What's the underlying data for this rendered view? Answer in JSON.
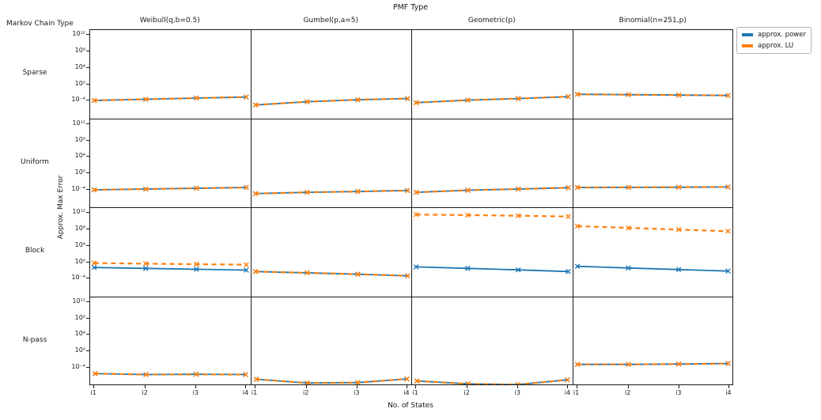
{
  "title": "PMF Type",
  "corner_label": "Markov Chain Type",
  "xlabel": "No. of States",
  "ylabel": "Approx. Max Error",
  "colors": {
    "power": "#1f77b4",
    "lu": "#ff7f0e",
    "axis": "#1a1a1a",
    "background": "#ffffff"
  },
  "legend": {
    "items": [
      {
        "label": "approx. power",
        "color": "#1f77b4",
        "style": "solid"
      },
      {
        "label": "approx. LU",
        "color": "#ff7f0e",
        "style": "dashed"
      }
    ]
  },
  "chart_data": {
    "type": "line",
    "title": "PMF Type",
    "xlabel": "No. of States",
    "ylabel": "Approx. Max Error",
    "col_titles": [
      "Weibull(q,b=0.5)",
      "Gumbel(p,a=5)",
      "Geometric(p)",
      "Binomial(n=251,p)"
    ],
    "row_titles": [
      "Sparse",
      "Uniform",
      "Block",
      "N-pass"
    ],
    "x_categories": [
      "i1",
      "i2",
      "i3",
      "i4"
    ],
    "y_scale": "log",
    "y_tick_exponents": [
      12,
      8,
      4,
      0,
      -4
    ],
    "y_tick_labels": [
      "10¹²",
      "10⁸",
      "10⁴",
      "10⁰",
      "10⁻⁴"
    ],
    "y_range_exponents": [
      -8.46,
      13.2
    ],
    "legend_position": "upper right outside",
    "grid_lines": false,
    "subplots": [
      {
        "row": "Sparse",
        "col": "Weibull(q,b=0.5)",
        "series": [
          {
            "name": "approx. power",
            "values": [
              0.0001,
              0.0002,
              0.0004,
              0.0007
            ]
          },
          {
            "name": "approx. LU",
            "values": [
              0.0001,
              0.0002,
              0.0004,
              0.0007
            ]
          }
        ]
      },
      {
        "row": "Sparse",
        "col": "Gumbel(p,a=5)",
        "series": [
          {
            "name": "approx. power",
            "values": [
              8e-06,
              5e-05,
              0.00015,
              0.0003
            ]
          },
          {
            "name": "approx. LU",
            "values": [
              8e-06,
              5e-05,
              0.00015,
              0.0003
            ]
          }
        ]
      },
      {
        "row": "Sparse",
        "col": "Geometric(p)",
        "series": [
          {
            "name": "approx. power",
            "values": [
              3e-05,
              0.00012,
              0.0003,
              0.0009
            ]
          },
          {
            "name": "approx. LU",
            "values": [
              3e-05,
              0.00012,
              0.0003,
              0.0009
            ]
          }
        ]
      },
      {
        "row": "Sparse",
        "col": "Binomial(n=251,p)",
        "series": [
          {
            "name": "approx. power",
            "values": [
              0.003,
              0.0024,
              0.0019,
              0.0015
            ]
          },
          {
            "name": "approx. LU",
            "values": [
              0.003,
              0.0024,
              0.0019,
              0.0015
            ]
          }
        ]
      },
      {
        "row": "Uniform",
        "col": "Weibull(q,b=0.5)",
        "series": [
          {
            "name": "approx. power",
            "values": [
              0.0001,
              0.00016,
              0.00025,
              0.0004
            ]
          },
          {
            "name": "approx. LU",
            "values": [
              0.0001,
              0.00016,
              0.00025,
              0.0004
            ]
          }
        ]
      },
      {
        "row": "Uniform",
        "col": "Gumbel(p,a=5)",
        "series": [
          {
            "name": "approx. power",
            "values": [
              1.2e-05,
              2.5e-05,
              4e-05,
              7e-05
            ]
          },
          {
            "name": "approx. LU",
            "values": [
              1.2e-05,
              2.5e-05,
              4e-05,
              7e-05
            ]
          }
        ]
      },
      {
        "row": "Uniform",
        "col": "Geometric(p)",
        "series": [
          {
            "name": "approx. power",
            "values": [
              2.5e-05,
              8e-05,
              0.00016,
              0.00035
            ]
          },
          {
            "name": "approx. LU",
            "values": [
              2.5e-05,
              8e-05,
              0.00016,
              0.00035
            ]
          }
        ]
      },
      {
        "row": "Uniform",
        "col": "Binomial(n=251,p)",
        "series": [
          {
            "name": "approx. power",
            "values": [
              0.00035,
              0.00036,
              0.0004,
              0.00045
            ]
          },
          {
            "name": "approx. LU",
            "values": [
              0.00035,
              0.00036,
              0.0004,
              0.00045
            ]
          }
        ]
      },
      {
        "row": "Block",
        "col": "Weibull(q,b=0.5)",
        "series": [
          {
            "name": "approx. power",
            "values": [
              0.05,
              0.03,
              0.018,
              0.011
            ]
          },
          {
            "name": "approx. LU",
            "values": [
              0.6,
              0.44,
              0.32,
              0.24
            ]
          }
        ]
      },
      {
        "row": "Block",
        "col": "Gumbel(p,a=5)",
        "series": [
          {
            "name": "approx. power",
            "values": [
              0.005,
              0.0024,
              0.0011,
              0.00045
            ]
          },
          {
            "name": "approx. LU",
            "values": [
              0.005,
              0.0024,
              0.0011,
              0.00045
            ]
          }
        ]
      },
      {
        "row": "Block",
        "col": "Geometric(p)",
        "series": [
          {
            "name": "approx. power",
            "values": [
              0.07,
              0.03,
              0.013,
              0.005
            ]
          },
          {
            "name": "approx. LU",
            "values": [
              500000000000.0,
              350000000000.0,
              250000000000.0,
              160000000000.0
            ]
          }
        ]
      },
      {
        "row": "Block",
        "col": "Binomial(n=251,p)",
        "series": [
          {
            "name": "approx. power",
            "values": [
              0.09,
              0.035,
              0.014,
              0.006
            ]
          },
          {
            "name": "approx. LU",
            "values": [
              800000000.0,
              300000000.0,
              110000000.0,
              45000000.0
            ]
          }
        ]
      },
      {
        "row": "N-pass",
        "col": "Weibull(q,b=0.5)",
        "series": [
          {
            "name": "approx. power",
            "values": [
              2e-06,
              1.2e-06,
              1.4e-06,
              1.2e-06
            ]
          },
          {
            "name": "approx. LU",
            "values": [
              2e-06,
              1.2e-06,
              1.4e-06,
              1.2e-06
            ]
          }
        ]
      },
      {
        "row": "N-pass",
        "col": "Gumbel(p,a=5)",
        "series": [
          {
            "name": "approx. power",
            "values": [
              8e-08,
              1e-08,
              1.2e-08,
              1e-07
            ]
          },
          {
            "name": "approx. LU",
            "values": [
              8e-08,
              1e-08,
              1.2e-08,
              1e-07
            ]
          }
        ]
      },
      {
        "row": "N-pass",
        "col": "Geometric(p)",
        "series": [
          {
            "name": "approx. power",
            "values": [
              3e-08,
              6e-09,
              4e-09,
              6e-08
            ]
          },
          {
            "name": "approx. LU",
            "values": [
              3e-08,
              6e-09,
              4e-09,
              6e-08
            ]
          }
        ]
      },
      {
        "row": "N-pass",
        "col": "Binomial(n=251,p)",
        "series": [
          {
            "name": "approx. power",
            "values": [
              0.0004,
              0.0004,
              0.00048,
              0.00065
            ]
          },
          {
            "name": "approx. LU",
            "values": [
              0.0004,
              0.0004,
              0.00048,
              0.00065
            ]
          }
        ]
      }
    ]
  }
}
